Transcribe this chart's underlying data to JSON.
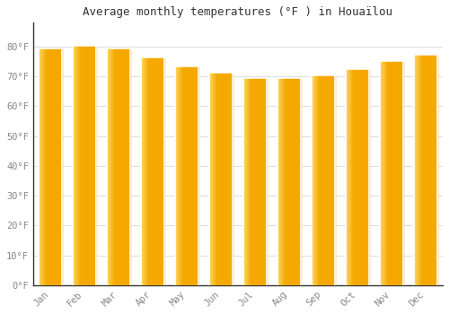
{
  "title": "Average monthly temperatures (°F ) in Houaïlou",
  "months": [
    "Jan",
    "Feb",
    "Mar",
    "Apr",
    "May",
    "Jun",
    "Jul",
    "Aug",
    "Sep",
    "Oct",
    "Nov",
    "Dec"
  ],
  "values": [
    79,
    80,
    79,
    76,
    73,
    71,
    69,
    69,
    70,
    72,
    75,
    77
  ],
  "bar_color_dark": "#F5A800",
  "bar_color_light": "#FFD966",
  "background_color": "#FFFFFF",
  "grid_color": "#E0E0E0",
  "tick_label_color": "#888888",
  "title_color": "#333333",
  "ylim": [
    0,
    88
  ],
  "ytick_vals": [
    0,
    10,
    20,
    30,
    40,
    50,
    60,
    70,
    80
  ],
  "ytick_labels": [
    "0°F",
    "10°F",
    "20°F",
    "30°F",
    "40°F",
    "50°F",
    "60°F",
    "70°F",
    "80°F"
  ]
}
